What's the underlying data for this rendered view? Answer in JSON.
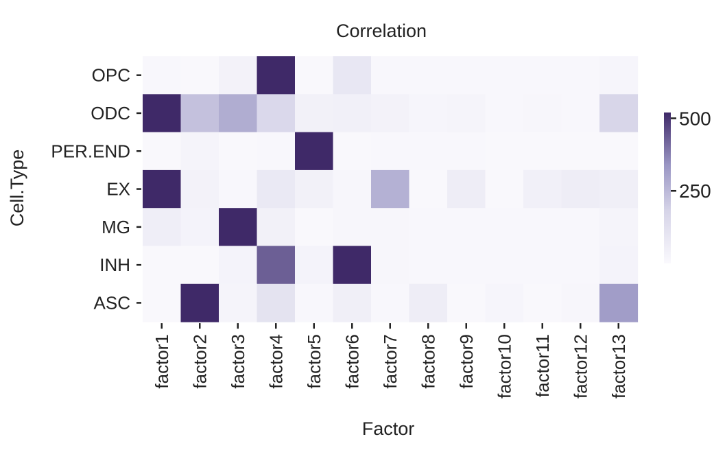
{
  "chart_data": {
    "type": "heatmap",
    "title": "Correlation",
    "xlabel": "Factor",
    "ylabel": "Cell.Type",
    "x": [
      "factor1",
      "factor2",
      "factor3",
      "factor4",
      "factor5",
      "factor6",
      "factor7",
      "factor8",
      "factor9",
      "factor10",
      "factor11",
      "factor12",
      "factor13"
    ],
    "y": [
      "OPC",
      "ODC",
      "PER.END",
      "EX",
      "MG",
      "INH",
      "ASC"
    ],
    "values": [
      [
        10,
        5,
        35,
        520,
        5,
        90,
        10,
        12,
        12,
        8,
        8,
        10,
        20
      ],
      [
        520,
        230,
        280,
        160,
        40,
        45,
        35,
        20,
        25,
        8,
        15,
        10,
        170
      ],
      [
        5,
        25,
        5,
        10,
        520,
        5,
        8,
        8,
        8,
        5,
        5,
        5,
        5
      ],
      [
        520,
        35,
        10,
        80,
        40,
        15,
        270,
        5,
        60,
        5,
        45,
        60,
        50
      ],
      [
        55,
        30,
        520,
        40,
        5,
        15,
        15,
        10,
        10,
        10,
        10,
        10,
        25
      ],
      [
        5,
        5,
        30,
        430,
        30,
        520,
        15,
        10,
        10,
        10,
        10,
        10,
        30
      ],
      [
        5,
        520,
        25,
        110,
        10,
        50,
        10,
        60,
        5,
        20,
        5,
        15,
        320
      ]
    ],
    "colorbar": {
      "ticks": [
        250,
        500
      ],
      "range": [
        0,
        520
      ],
      "colormap": "light-to-dark purple",
      "color_low": "#faf9fd",
      "color_high": "#3f2968"
    }
  }
}
